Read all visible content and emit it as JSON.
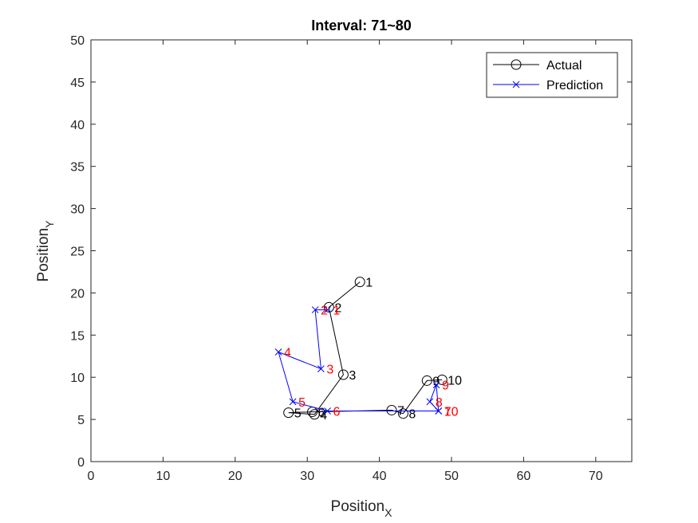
{
  "chart_data": {
    "type": "line",
    "title": "Interval: 71~80",
    "xlabel": {
      "main": "Position",
      "sub": "X"
    },
    "ylabel": {
      "main": "Position",
      "sub": "Y"
    },
    "xlim": [
      0,
      75
    ],
    "ylim": [
      0,
      50
    ],
    "xticks": [
      0,
      10,
      20,
      30,
      40,
      50,
      60,
      70
    ],
    "yticks": [
      0,
      5,
      10,
      15,
      20,
      25,
      30,
      35,
      40,
      45,
      50
    ],
    "grid": false,
    "legend_position": "top-right",
    "series": [
      {
        "name": "Actual",
        "color": "#000000",
        "marker": "circle",
        "label_color": "#000000",
        "labels": [
          "1",
          "2",
          "3",
          "4",
          "5",
          "6",
          "7",
          "8",
          "9",
          "10"
        ],
        "points": [
          {
            "x": 37.3,
            "y": 21.3
          },
          {
            "x": 33.0,
            "y": 18.3
          },
          {
            "x": 35.0,
            "y": 10.3
          },
          {
            "x": 31.0,
            "y": 5.6
          },
          {
            "x": 27.4,
            "y": 5.8
          },
          {
            "x": 30.7,
            "y": 5.9
          },
          {
            "x": 41.7,
            "y": 6.1
          },
          {
            "x": 43.3,
            "y": 5.7
          },
          {
            "x": 46.6,
            "y": 9.6
          },
          {
            "x": 48.7,
            "y": 9.7
          }
        ]
      },
      {
        "name": "Prediction",
        "color": "#0000ff",
        "marker": "x",
        "label_color": "#ff0000",
        "labels": [
          "1",
          "2",
          "3",
          "4",
          "5",
          "6",
          "7",
          "8",
          "9",
          "10"
        ],
        "points": [
          {
            "x": 32.8,
            "y": 18.0
          },
          {
            "x": 31.1,
            "y": 18.0
          },
          {
            "x": 31.9,
            "y": 11.0
          },
          {
            "x": 26.0,
            "y": 13.0
          },
          {
            "x": 28.0,
            "y": 7.1
          },
          {
            "x": 32.8,
            "y": 6.0
          },
          {
            "x": 48.2,
            "y": 6.0
          },
          {
            "x": 47.0,
            "y": 7.1
          },
          {
            "x": 47.9,
            "y": 9.1
          },
          {
            "x": 48.2,
            "y": 6.0
          }
        ]
      }
    ]
  }
}
